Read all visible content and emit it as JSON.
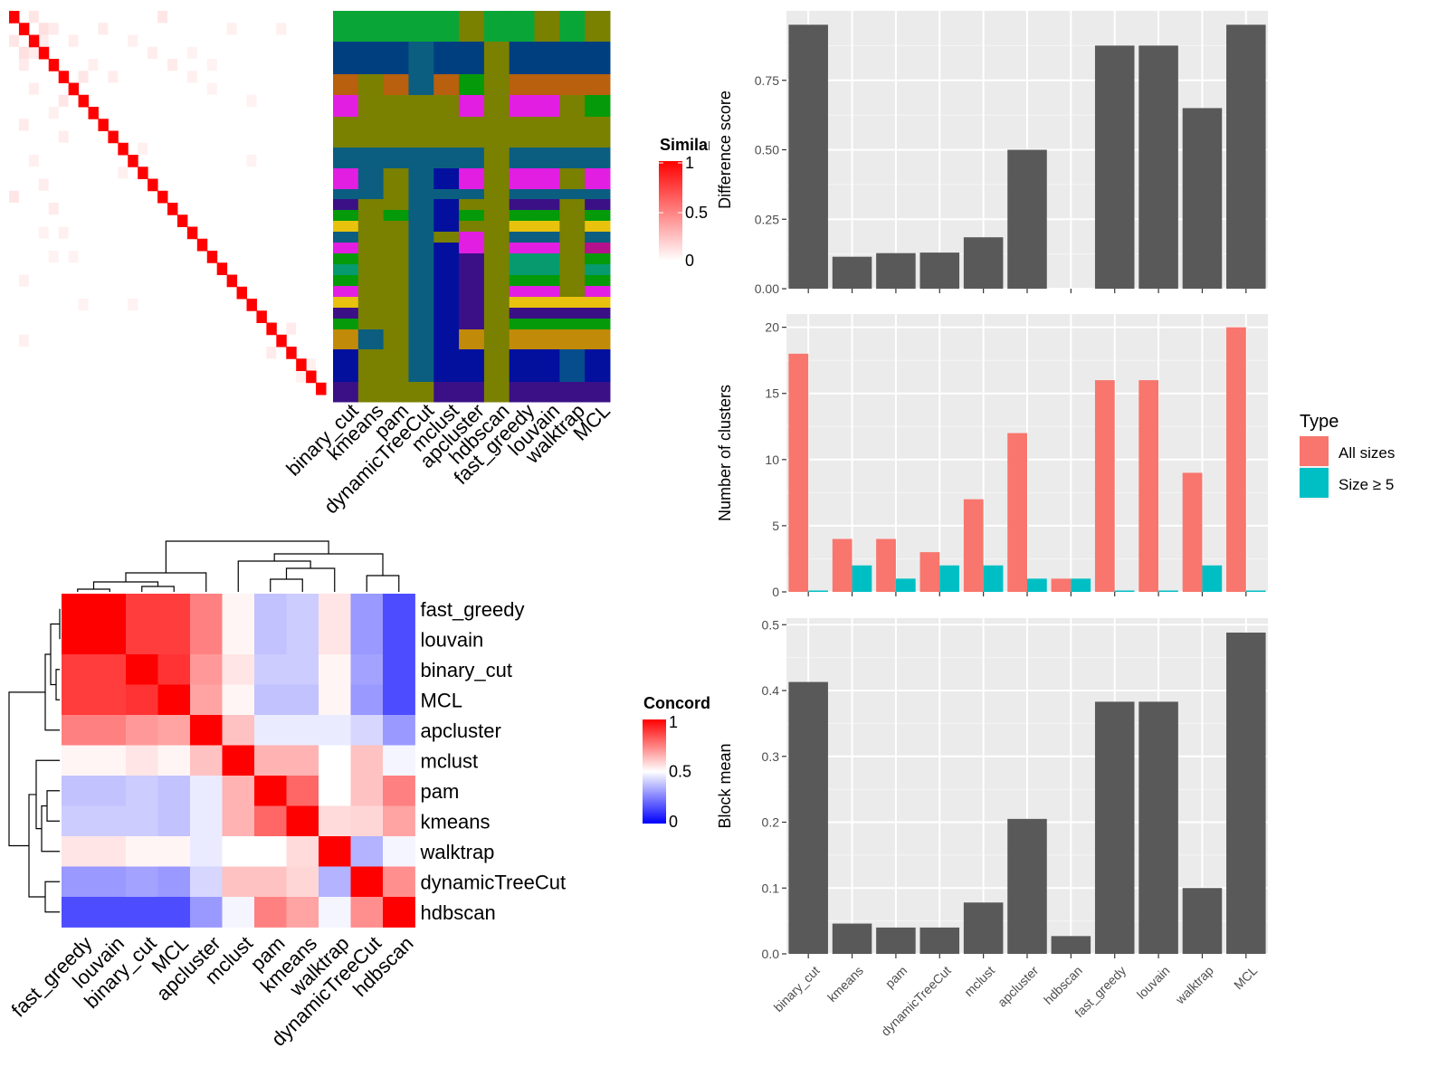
{
  "chart_data": [
    {
      "type": "heatmap",
      "name": "similarity",
      "legend_title": "Similarity",
      "legend_ticks": [
        "1",
        "0.5",
        "0"
      ],
      "n": 32
    },
    {
      "type": "heatmap",
      "name": "cluster-assignment",
      "columns": [
        "binary_cut",
        "kmeans",
        "pam",
        "dynamicTreeCut",
        "mclust",
        "apcluster",
        "hdbscan",
        "fast_greedy",
        "louvain",
        "walktrap",
        "MCL"
      ]
    },
    {
      "type": "heatmap",
      "name": "concordance",
      "legend_title": "Concordance",
      "legend_ticks": [
        "1",
        "0.5",
        "0"
      ],
      "labels": [
        "fast_greedy",
        "louvain",
        "binary_cut",
        "MCL",
        "apcluster",
        "mclust",
        "pam",
        "kmeans",
        "walktrap",
        "dynamicTreeCut",
        "hdbscan"
      ],
      "matrix": [
        [
          1.0,
          1.0,
          0.88,
          0.88,
          0.75,
          0.52,
          0.38,
          0.4,
          0.55,
          0.3,
          0.15
        ],
        [
          1.0,
          1.0,
          0.88,
          0.88,
          0.75,
          0.52,
          0.38,
          0.4,
          0.55,
          0.3,
          0.15
        ],
        [
          0.88,
          0.88,
          1.0,
          0.9,
          0.7,
          0.55,
          0.4,
          0.4,
          0.52,
          0.32,
          0.15
        ],
        [
          0.88,
          0.88,
          0.9,
          1.0,
          0.68,
          0.52,
          0.38,
          0.38,
          0.52,
          0.3,
          0.15
        ],
        [
          0.75,
          0.75,
          0.7,
          0.68,
          1.0,
          0.62,
          0.46,
          0.46,
          0.46,
          0.42,
          0.3
        ],
        [
          0.52,
          0.52,
          0.55,
          0.52,
          0.62,
          1.0,
          0.65,
          0.65,
          0.5,
          0.62,
          0.48
        ],
        [
          0.38,
          0.38,
          0.4,
          0.38,
          0.46,
          0.65,
          1.0,
          0.8,
          0.5,
          0.62,
          0.75
        ],
        [
          0.4,
          0.4,
          0.4,
          0.38,
          0.46,
          0.65,
          0.8,
          1.0,
          0.57,
          0.58,
          0.68
        ],
        [
          0.55,
          0.55,
          0.52,
          0.52,
          0.46,
          0.5,
          0.5,
          0.57,
          1.0,
          0.35,
          0.48
        ],
        [
          0.3,
          0.3,
          0.32,
          0.3,
          0.42,
          0.62,
          0.62,
          0.58,
          0.35,
          1.0,
          0.72
        ],
        [
          0.15,
          0.15,
          0.15,
          0.15,
          0.3,
          0.48,
          0.75,
          0.68,
          0.48,
          0.72,
          1.0
        ]
      ]
    },
    {
      "type": "bar",
      "name": "difference-score",
      "categories": [
        "binary_cut",
        "kmeans",
        "pam",
        "dynamicTreeCut",
        "mclust",
        "apcluster",
        "hdbscan",
        "fast_greedy",
        "louvain",
        "walktrap",
        "MCL"
      ],
      "values": [
        0.95,
        0.115,
        0.128,
        0.13,
        0.185,
        0.5,
        0,
        0.875,
        0.875,
        0.65,
        0.95
      ],
      "ylabel": "Difference score",
      "ylim": [
        0,
        1.0
      ],
      "yticks": [
        "0.00",
        "0.25",
        "0.50",
        "0.75"
      ]
    },
    {
      "type": "bar",
      "name": "number-of-clusters",
      "categories": [
        "binary_cut",
        "kmeans",
        "pam",
        "dynamicTreeCut",
        "mclust",
        "apcluster",
        "hdbscan",
        "fast_greedy",
        "louvain",
        "walktrap",
        "MCL"
      ],
      "series": [
        {
          "name": "All sizes",
          "color": "#f8766d",
          "values": [
            18,
            4,
            4,
            3,
            7,
            12,
            1,
            16,
            16,
            9,
            20
          ]
        },
        {
          "name": "Size ≥ 5",
          "color": "#00bfc4",
          "values": [
            0,
            2,
            1,
            2,
            2,
            1,
            1,
            0,
            0,
            2,
            0
          ]
        }
      ],
      "ylabel": "Number of clusters",
      "ylim": [
        0,
        21
      ],
      "yticks": [
        "0",
        "5",
        "10",
        "15",
        "20"
      ],
      "legend_title": "Type",
      "legend_position": "right"
    },
    {
      "type": "bar",
      "name": "block-mean",
      "categories": [
        "binary_cut",
        "kmeans",
        "pam",
        "dynamicTreeCut",
        "mclust",
        "apcluster",
        "hdbscan",
        "fast_greedy",
        "louvain",
        "walktrap",
        "MCL"
      ],
      "values": [
        0.413,
        0.046,
        0.04,
        0.04,
        0.078,
        0.205,
        0.027,
        0.383,
        0.383,
        0.1,
        0.488
      ],
      "ylabel": "Block mean",
      "ylim": [
        0,
        0.51
      ],
      "yticks": [
        "0.0",
        "0.1",
        "0.2",
        "0.3",
        "0.4",
        "0.5"
      ]
    }
  ]
}
